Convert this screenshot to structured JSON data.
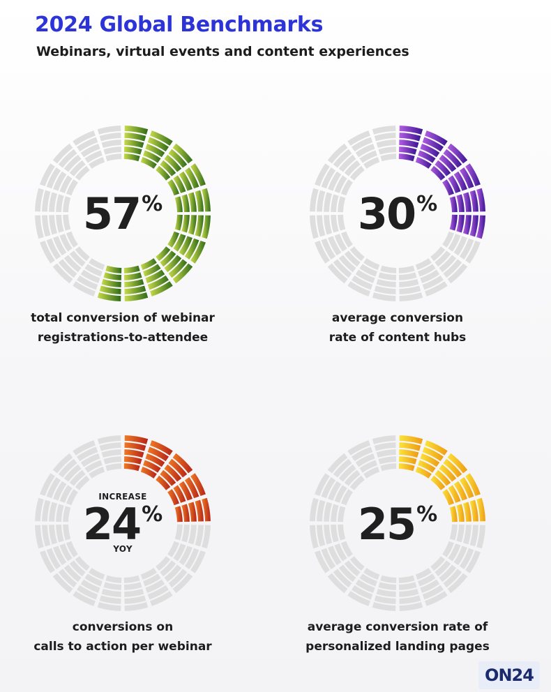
{
  "header": {
    "title": "2024 Global Benchmarks",
    "subtitle": "Webinars, virtual events and content experiences"
  },
  "chart_data": [
    {
      "type": "gauge",
      "value": 57,
      "value_label": "57",
      "unit": "%",
      "top_label": "",
      "bottom_label": "",
      "caption_line1": "total conversion of webinar",
      "caption_line2": "registrations-to-attendee",
      "color_light": "#c8db4a",
      "color_dark": "#2f6a18"
    },
    {
      "type": "gauge",
      "value": 30,
      "value_label": "30",
      "unit": "%",
      "top_label": "",
      "bottom_label": "",
      "caption_line1": "average conversion",
      "caption_line2": "rate of content hubs",
      "color_light": "#b25de2",
      "color_dark": "#3a1592"
    },
    {
      "type": "gauge",
      "value": 24,
      "value_label": "24",
      "unit": "%",
      "top_label": "INCREASE",
      "bottom_label": "YOY",
      "caption_line1": "conversions on",
      "caption_line2": "calls to action per webinar",
      "color_light": "#ef7a24",
      "color_dark": "#b52418"
    },
    {
      "type": "gauge",
      "value": 25,
      "value_label": "25",
      "unit": "%",
      "top_label": "",
      "bottom_label": "",
      "caption_line1": "average conversion rate of",
      "caption_line2": "personalized landing pages",
      "color_light": "#fbe33a",
      "color_dark": "#ee9a14"
    }
  ],
  "logo": {
    "text": "ON24"
  }
}
